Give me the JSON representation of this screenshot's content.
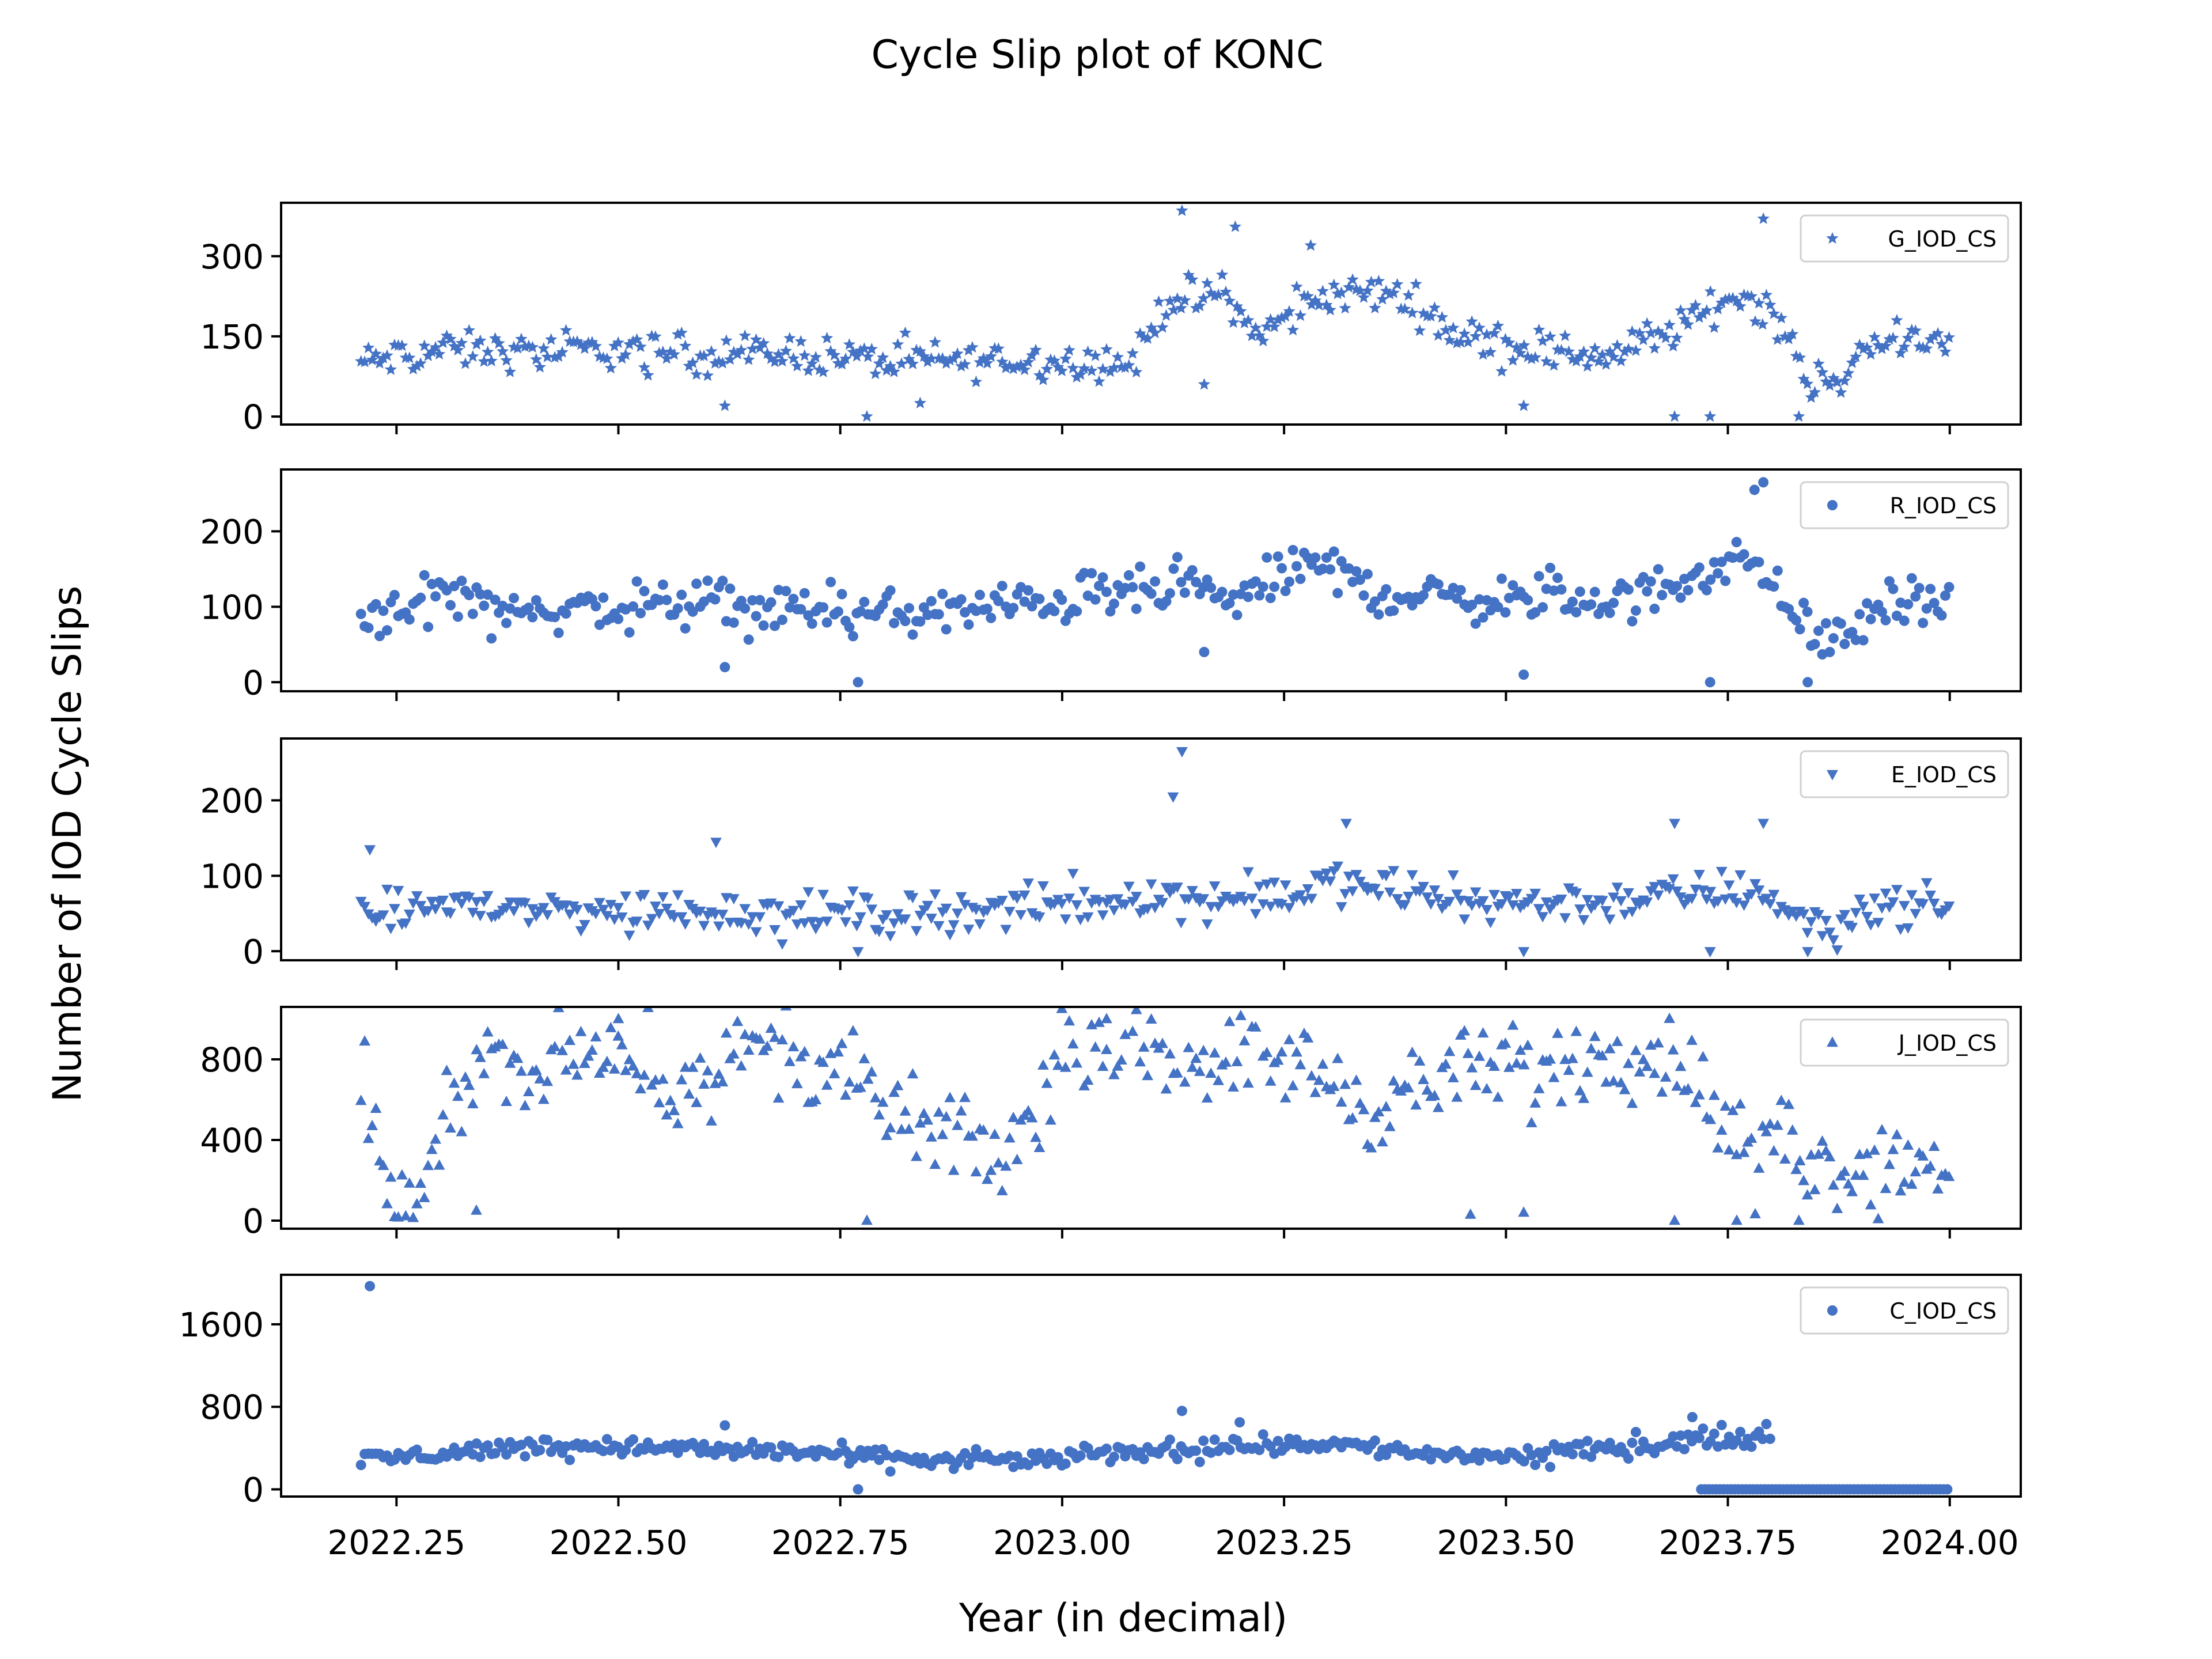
{
  "figure": {
    "title": "Cycle Slip plot of KONC",
    "xlabel": "Year (in decimal)",
    "ylabel": "Number of IOD Cycle Slips",
    "marker_color": "#4472c4"
  },
  "chart_data": [
    {
      "type": "scatter",
      "series": [
        {
          "name": "G_IOD_CS",
          "marker": "star"
        }
      ],
      "xlim": [
        2022.12,
        2024.08
      ],
      "ylim": [
        -15,
        400
      ],
      "yticks": [
        0,
        150,
        300
      ],
      "xticks": [
        2022.25,
        2022.5,
        2022.75,
        2023.0,
        2023.25,
        2023.5,
        2023.75,
        2024.0
      ],
      "xtick_labels": [],
      "legend": "top-right",
      "trend": [
        [
          2022.21,
          100
        ],
        [
          2022.3,
          125
        ],
        [
          2022.4,
          120
        ],
        [
          2022.5,
          125
        ],
        [
          2022.6,
          115
        ],
        [
          2022.7,
          120
        ],
        [
          2022.8,
          105
        ],
        [
          2022.9,
          105
        ],
        [
          2023.0,
          105
        ],
        [
          2023.08,
          100
        ],
        [
          2023.12,
          220
        ],
        [
          2023.18,
          230
        ],
        [
          2023.22,
          150
        ],
        [
          2023.3,
          230
        ],
        [
          2023.38,
          230
        ],
        [
          2023.45,
          150
        ],
        [
          2023.55,
          120
        ],
        [
          2023.62,
          115
        ],
        [
          2023.7,
          170
        ],
        [
          2023.76,
          230
        ],
        [
          2023.8,
          200
        ],
        [
          2023.84,
          70
        ],
        [
          2023.88,
          45
        ],
        [
          2023.9,
          140
        ],
        [
          2024.0,
          135
        ]
      ],
      "spread": 28,
      "outliers": [
        [
          2023.135,
          385
        ],
        [
          2023.195,
          355
        ],
        [
          2023.79,
          370
        ],
        [
          2022.62,
          20
        ],
        [
          2022.78,
          0
        ],
        [
          2022.84,
          25
        ],
        [
          2023.52,
          20
        ],
        [
          2023.69,
          0
        ],
        [
          2023.73,
          0
        ],
        [
          2023.83,
          0
        ],
        [
          2023.16,
          60
        ],
        [
          2023.28,
          320
        ]
      ]
    },
    {
      "type": "scatter",
      "series": [
        {
          "name": "R_IOD_CS",
          "marker": "circle"
        }
      ],
      "xlim": [
        2022.12,
        2024.08
      ],
      "ylim": [
        -12,
        282
      ],
      "yticks": [
        0,
        100,
        200
      ],
      "xticks": [
        2022.25,
        2022.5,
        2022.75,
        2023.0,
        2023.25,
        2023.5,
        2023.75,
        2024.0
      ],
      "xtick_labels": [],
      "legend": "top-right",
      "trend": [
        [
          2022.21,
          85
        ],
        [
          2022.3,
          120
        ],
        [
          2022.4,
          95
        ],
        [
          2022.5,
          100
        ],
        [
          2022.6,
          105
        ],
        [
          2022.7,
          95
        ],
        [
          2022.8,
          90
        ],
        [
          2022.9,
          95
        ],
        [
          2023.0,
          110
        ],
        [
          2023.1,
          120
        ],
        [
          2023.15,
          120
        ],
        [
          2023.2,
          110
        ],
        [
          2023.28,
          160
        ],
        [
          2023.35,
          120
        ],
        [
          2023.45,
          110
        ],
        [
          2023.55,
          110
        ],
        [
          2023.65,
          110
        ],
        [
          2023.72,
          150
        ],
        [
          2023.78,
          160
        ],
        [
          2023.82,
          100
        ],
        [
          2023.85,
          55
        ],
        [
          2023.88,
          60
        ],
        [
          2023.92,
          100
        ],
        [
          2024.0,
          110
        ]
      ],
      "spread": 25,
      "outliers": [
        [
          2023.79,
          265
        ],
        [
          2023.78,
          255
        ],
        [
          2022.77,
          0
        ],
        [
          2023.52,
          10
        ],
        [
          2023.73,
          0
        ],
        [
          2023.84,
          0
        ],
        [
          2022.62,
          20
        ],
        [
          2023.16,
          40
        ]
      ]
    },
    {
      "type": "scatter",
      "series": [
        {
          "name": "E_IOD_CS",
          "marker": "triangle-down"
        }
      ],
      "xlim": [
        2022.12,
        2024.08
      ],
      "ylim": [
        -12,
        282
      ],
      "yticks": [
        0,
        100,
        200
      ],
      "xticks": [
        2022.25,
        2022.5,
        2022.75,
        2023.0,
        2023.25,
        2023.5,
        2023.75,
        2024.0
      ],
      "xtick_labels": [],
      "legend": "top-right",
      "trend": [
        [
          2022.21,
          40
        ],
        [
          2022.3,
          65
        ],
        [
          2022.4,
          55
        ],
        [
          2022.5,
          55
        ],
        [
          2022.6,
          55
        ],
        [
          2022.7,
          50
        ],
        [
          2022.8,
          50
        ],
        [
          2022.9,
          55
        ],
        [
          2023.0,
          60
        ],
        [
          2023.1,
          75
        ],
        [
          2023.15,
          70
        ],
        [
          2023.22,
          70
        ],
        [
          2023.3,
          90
        ],
        [
          2023.4,
          75
        ],
        [
          2023.5,
          65
        ],
        [
          2023.6,
          65
        ],
        [
          2023.7,
          75
        ],
        [
          2023.78,
          85
        ],
        [
          2023.83,
          45
        ],
        [
          2023.87,
          25
        ],
        [
          2023.9,
          60
        ],
        [
          2024.0,
          60
        ]
      ],
      "spread": 22,
      "outliers": [
        [
          2023.135,
          265
        ],
        [
          2023.125,
          205
        ],
        [
          2022.22,
          135
        ],
        [
          2023.32,
          170
        ],
        [
          2022.61,
          145
        ],
        [
          2023.69,
          170
        ],
        [
          2023.79,
          170
        ],
        [
          2022.77,
          0
        ],
        [
          2023.52,
          0
        ],
        [
          2023.73,
          0
        ],
        [
          2023.84,
          0
        ]
      ]
    },
    {
      "type": "scatter",
      "series": [
        {
          "name": "J_IOD_CS",
          "marker": "triangle-up"
        }
      ],
      "xlim": [
        2022.12,
        2024.08
      ],
      "ylim": [
        -40,
        1060
      ],
      "yticks": [
        0,
        400,
        800
      ],
      "xticks": [
        2022.25,
        2022.5,
        2022.75,
        2023.0,
        2023.25,
        2023.5,
        2023.75,
        2024.0
      ],
      "xtick_labels": [],
      "legend": "top-right",
      "trend": [
        [
          2022.21,
          700
        ],
        [
          2022.23,
          300
        ],
        [
          2022.25,
          60
        ],
        [
          2022.28,
          100
        ],
        [
          2022.32,
          700
        ],
        [
          2022.36,
          850
        ],
        [
          2022.4,
          600
        ],
        [
          2022.45,
          850
        ],
        [
          2022.5,
          850
        ],
        [
          2022.55,
          650
        ],
        [
          2022.6,
          750
        ],
        [
          2022.65,
          850
        ],
        [
          2022.7,
          800
        ],
        [
          2022.75,
          750
        ],
        [
          2022.8,
          550
        ],
        [
          2022.88,
          400
        ],
        [
          2022.94,
          300
        ],
        [
          2022.98,
          650
        ],
        [
          2023.03,
          920
        ],
        [
          2023.08,
          850
        ],
        [
          2023.15,
          820
        ],
        [
          2023.25,
          800
        ],
        [
          2023.3,
          700
        ],
        [
          2023.35,
          550
        ],
        [
          2023.42,
          700
        ],
        [
          2023.48,
          750
        ],
        [
          2023.55,
          750
        ],
        [
          2023.62,
          850
        ],
        [
          2023.7,
          800
        ],
        [
          2023.74,
          500
        ],
        [
          2023.78,
          300
        ],
        [
          2023.82,
          400
        ],
        [
          2023.86,
          250
        ],
        [
          2023.92,
          300
        ],
        [
          2024.0,
          270
        ]
      ],
      "spread": 170,
      "outliers": [
        [
          2022.5,
          1000
        ],
        [
          2023.05,
          1000
        ],
        [
          2022.34,
          50
        ],
        [
          2022.78,
          0
        ],
        [
          2023.46,
          30
        ],
        [
          2023.52,
          40
        ],
        [
          2023.69,
          0
        ],
        [
          2023.76,
          0
        ],
        [
          2023.83,
          0
        ]
      ]
    },
    {
      "type": "scatter",
      "series": [
        {
          "name": "C_IOD_CS",
          "marker": "circle"
        }
      ],
      "xlim": [
        2022.12,
        2024.08
      ],
      "ylim": [
        -70,
        2080
      ],
      "yticks": [
        0,
        800,
        1600
      ],
      "xticks": [
        2022.25,
        2022.5,
        2022.75,
        2023.0,
        2023.25,
        2023.5,
        2023.75,
        2024.0
      ],
      "xtick_labels": [
        "2022.25",
        "2022.50",
        "2022.75",
        "2023.00",
        "2023.25",
        "2023.50",
        "2023.75",
        "2024.00"
      ],
      "legend": "top-right",
      "trend": [
        [
          2022.21,
          280
        ],
        [
          2022.3,
          350
        ],
        [
          2022.4,
          420
        ],
        [
          2022.5,
          420
        ],
        [
          2022.6,
          380
        ],
        [
          2022.7,
          370
        ],
        [
          2022.8,
          300
        ],
        [
          2022.9,
          280
        ],
        [
          2023.0,
          300
        ],
        [
          2023.1,
          380
        ],
        [
          2023.2,
          420
        ],
        [
          2023.3,
          450
        ],
        [
          2023.4,
          350
        ],
        [
          2023.5,
          320
        ],
        [
          2023.6,
          380
        ],
        [
          2023.7,
          480
        ],
        [
          2023.79,
          500
        ]
      ],
      "trend_end": 2023.8,
      "zero_from": 2023.72,
      "zero_to": 2024.0,
      "spread": 70,
      "outliers": [
        [
          2022.22,
          1970
        ],
        [
          2023.135,
          760
        ],
        [
          2022.62,
          620
        ],
        [
          2023.2,
          650
        ],
        [
          2022.77,
          0
        ],
        [
          2022.76,
          250
        ],
        [
          2023.71,
          700
        ]
      ]
    }
  ]
}
